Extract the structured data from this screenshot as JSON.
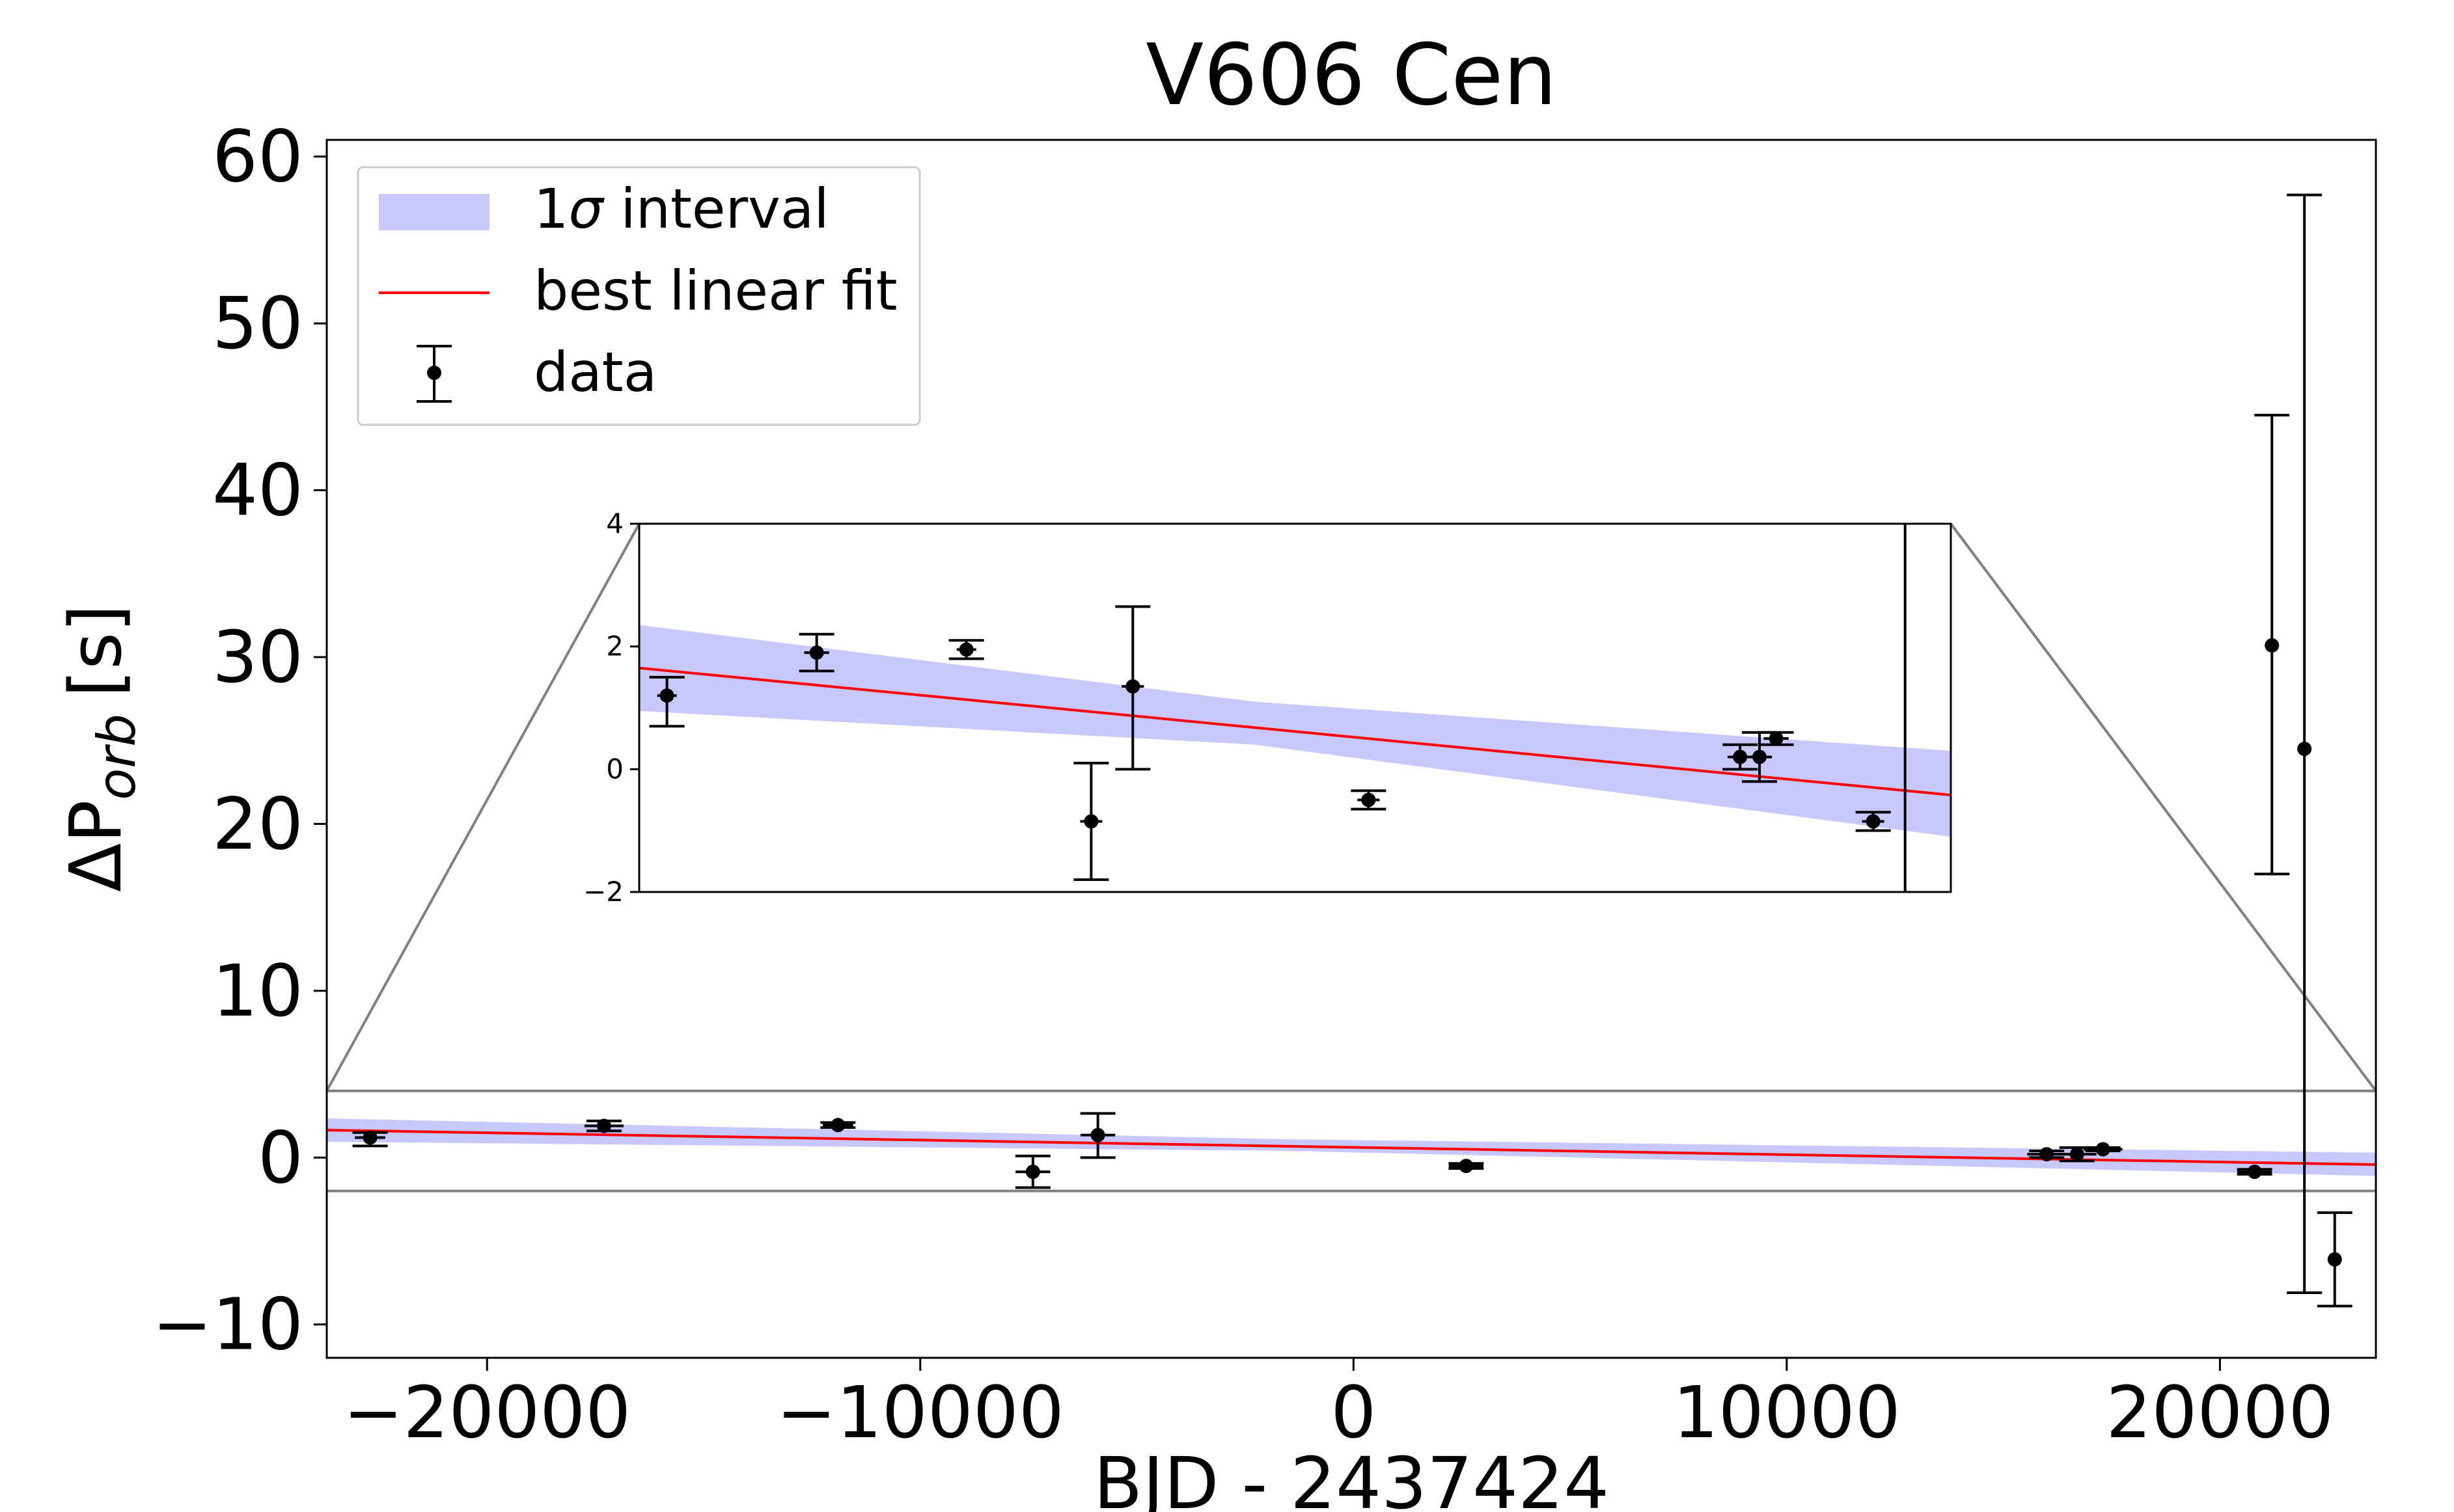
{
  "chart_data": {
    "type": "scatter",
    "title": "V606 Cen",
    "xlabel": "BJD - 2437424",
    "ylabel_main": "ΔP",
    "ylabel_sub": "orb",
    "ylabel_unit": "[s]",
    "xlim": [
      -23700,
      23600
    ],
    "ylim": [
      -12,
      61
    ],
    "xticks": [
      -20000,
      -10000,
      0,
      10000,
      20000
    ],
    "xtick_labels": [
      "−20000",
      "−10000",
      "0",
      "10000",
      "20000"
    ],
    "yticks": [
      -10,
      0,
      10,
      20,
      30,
      40,
      50,
      60
    ],
    "ytick_labels": [
      "−10",
      "0",
      "10",
      "20",
      "30",
      "40",
      "50",
      "60"
    ],
    "fit": {
      "x": [
        -23700,
        23600
      ],
      "y": [
        1.65,
        -0.42
      ],
      "band_x": [
        -23700,
        -1500,
        23600
      ],
      "band_upper": [
        2.35,
        1.1,
        0.3
      ],
      "band_lower": [
        0.95,
        0.4,
        -1.1
      ]
    },
    "points": [
      {
        "x": -22700,
        "y": 1.2,
        "yerr_low": 0.5,
        "yerr_high": 0.3,
        "xerr": 350
      },
      {
        "x": -17300,
        "y": 1.9,
        "yerr_low": 0.3,
        "yerr_high": 0.3,
        "xerr": 450
      },
      {
        "x": -11900,
        "y": 1.95,
        "yerr_low": 0.15,
        "yerr_high": 0.15,
        "xerr": 350
      },
      {
        "x": -7400,
        "y": -0.85,
        "yerr_low": 0.95,
        "yerr_high": 0.95,
        "xerr": 400
      },
      {
        "x": -5900,
        "y": 1.35,
        "yerr_low": 1.35,
        "yerr_high": 1.3,
        "xerr": 400
      },
      {
        "x": 2600,
        "y": -0.5,
        "yerr_low": 0.15,
        "yerr_high": 0.15,
        "xerr": 400
      },
      {
        "x": 16000,
        "y": 0.2,
        "yerr_low": 0.2,
        "yerr_high": 0.2,
        "xerr": 450
      },
      {
        "x": 16700,
        "y": 0.2,
        "yerr_low": 0.4,
        "yerr_high": 0.4,
        "xerr": 450
      },
      {
        "x": 17300,
        "y": 0.5,
        "yerr_low": 0.1,
        "yerr_high": 0.1,
        "xerr": 450
      },
      {
        "x": 20800,
        "y": -0.85,
        "yerr_low": 0.15,
        "yerr_high": 0.15,
        "xerr": 400
      },
      {
        "x": 21200,
        "y": 30.7,
        "yerr_low": 13.7,
        "yerr_high": 13.8,
        "xerr": 0
      },
      {
        "x": 21950,
        "y": 24.5,
        "yerr_low": 32.6,
        "yerr_high": 33.2,
        "xerr": 0
      },
      {
        "x": 22650,
        "y": -6.1,
        "yerr_low": 2.8,
        "yerr_high": 2.8,
        "xerr": 0
      }
    ],
    "legend": {
      "position": "top-left",
      "entries": [
        {
          "kind": "band",
          "label_prefix": "1",
          "label_symbol": "σ",
          "label_suffix": " interval"
        },
        {
          "kind": "line",
          "label": "best linear fit"
        },
        {
          "kind": "errorbar",
          "label": "data"
        }
      ]
    },
    "inset": {
      "xlim": [
        -23700,
        23600
      ],
      "ylim": [
        -2,
        4
      ],
      "yticks": [
        -2,
        0,
        2,
        4
      ],
      "ytick_labels": [
        "−2",
        "0",
        "2",
        "4"
      ],
      "indicator_y": [
        -2,
        4
      ],
      "clip_marker_x": 21950
    },
    "colors": {
      "band": "#c8c8ff",
      "fit_line": "#ff0000",
      "data": "#000000",
      "indicator": "#808080"
    }
  }
}
